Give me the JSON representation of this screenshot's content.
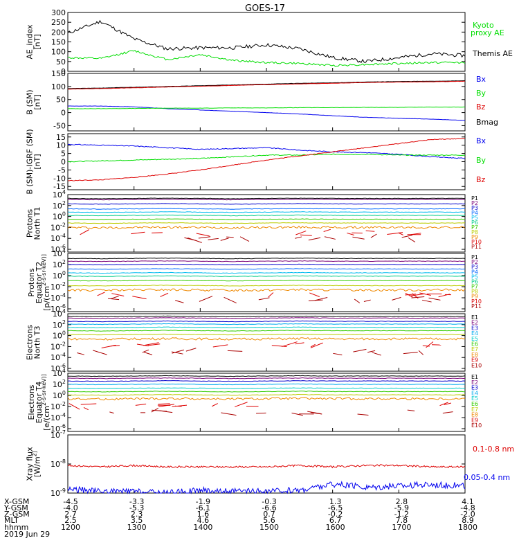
{
  "title": "GOES-17",
  "colors": {
    "black": "#000000",
    "green": "#00dd00",
    "blue": "#0000ee",
    "red": "#dd0000"
  },
  "panels": [
    {
      "ylabel_lines": [
        "AE_index",
        "[nT]"
      ],
      "scale": "linear",
      "ylim": [
        0,
        300
      ],
      "ticks": [
        "300",
        "250",
        "200",
        "150",
        "100",
        "50",
        "0"
      ],
      "tick_values": [
        300,
        250,
        200,
        150,
        100,
        50,
        0
      ],
      "legend": [
        {
          "label": "Kyoto",
          "color": "#00dd00"
        },
        {
          "label": "proxy AE",
          "color": "#00dd00"
        },
        {
          "label": "Themis AE",
          "color": "#000000"
        }
      ]
    },
    {
      "ylabel_lines": [
        "B (SM)",
        "[nT]"
      ],
      "scale": "linear",
      "ylim": [
        -70,
        150
      ],
      "ticks": [
        "150",
        "100",
        "50",
        "0",
        "-50"
      ],
      "tick_values": [
        150,
        100,
        50,
        0,
        -50
      ],
      "legend": [
        {
          "label": "Bx",
          "color": "#0000ee"
        },
        {
          "label": "By",
          "color": "#00dd00"
        },
        {
          "label": "Bz",
          "color": "#dd0000"
        },
        {
          "label": "Bmag",
          "color": "#000000"
        }
      ]
    },
    {
      "ylabel_lines": [
        "B (SM)-IGRF (SM)",
        "[nT]"
      ],
      "scale": "linear",
      "ylim": [
        -17,
        17
      ],
      "ticks": [
        "15",
        "10",
        "5",
        "0",
        "-5",
        "-10",
        "-15"
      ],
      "tick_values": [
        15,
        10,
        5,
        0,
        -5,
        -10,
        -15
      ],
      "legend": [
        {
          "label": "Bx",
          "color": "#0000ee"
        },
        {
          "label": "By",
          "color": "#00dd00"
        },
        {
          "label": "Bz",
          "color": "#dd0000"
        }
      ]
    },
    {
      "ylabel_lines": [
        "Protons",
        "North T1"
      ],
      "scale": "log",
      "ylim": [
        -6.5,
        4
      ],
      "ticks": [
        "10^4",
        "10^2",
        "10^0",
        "10^-2",
        "10^-4",
        "10^-6"
      ],
      "tick_values": [
        4,
        2,
        0,
        -2,
        -4,
        -6
      ],
      "channels": [
        "P1",
        "P2",
        "P3",
        "P4",
        "P5",
        "P6",
        "P7",
        "P8",
        "P9",
        "P10",
        "P11"
      ]
    },
    {
      "ylabel_lines": [
        "Protons",
        "Equator T2",
        "[p/(cm^2-s-sr-keV)]"
      ],
      "scale": "log",
      "ylim": [
        -6.5,
        4
      ],
      "ticks": [
        "10^4",
        "10^2",
        "10^0",
        "10^-2",
        "10^-4",
        "10^-6"
      ],
      "tick_values": [
        4,
        2,
        0,
        -2,
        -4,
        -6
      ],
      "channels": [
        "P1",
        "P2",
        "P3",
        "P4",
        "P5",
        "P6",
        "P7",
        "P8",
        "P9",
        "P10",
        "P11"
      ]
    },
    {
      "ylabel_lines": [
        "Electrons",
        "North T3"
      ],
      "scale": "log",
      "ylim": [
        -6.5,
        4
      ],
      "ticks": [
        "10^4",
        "10^2",
        "10^0",
        "10^-2",
        "10^-4",
        "10^-6"
      ],
      "tick_values": [
        4,
        2,
        0,
        -2,
        -4,
        -6
      ],
      "channels": [
        "E1",
        "E2",
        "E3",
        "E4",
        "E5",
        "E6",
        "E7",
        "E8",
        "E9",
        "E10"
      ]
    },
    {
      "ylabel_lines": [
        "Electrons",
        "Equator T4",
        "[e/(cm^2-s-sr-keV)]"
      ],
      "scale": "log",
      "ylim": [
        -6.5,
        4
      ],
      "ticks": [
        "10^4",
        "10^2",
        "10^0",
        "10^-2",
        "10^-4",
        "10^-6"
      ],
      "tick_values": [
        4,
        2,
        0,
        -2,
        -4,
        -6
      ],
      "channels": [
        "E1",
        "E2",
        "E3",
        "E4",
        "E5",
        "E6",
        "E7",
        "E8",
        "E9",
        "E10"
      ]
    },
    {
      "ylabel_lines": [
        "Xray flux",
        "[W/m^2]"
      ],
      "scale": "log",
      "ylim": [
        -9,
        -7
      ],
      "ticks": [
        "10^-7",
        "10^-8",
        "10^-9"
      ],
      "tick_values": [
        -7,
        -8,
        -9
      ],
      "legend": [
        {
          "label": "0.1-0.8 nm",
          "color": "#dd0000"
        },
        {
          "label": "0.05-0.4 nm",
          "color": "#0000ee"
        }
      ]
    }
  ],
  "channel_colors": {
    "P": [
      "#000000",
      "#7a007a",
      "#0000cc",
      "#0066ff",
      "#00bbee",
      "#00cc88",
      "#33cc00",
      "#bbcc00",
      "#ee8800",
      "#dd0000",
      "#aa0000"
    ],
    "E": [
      "#000000",
      "#7a007a",
      "#0000cc",
      "#00aaee",
      "#00cccc",
      "#33cc00",
      "#bbcc00",
      "#ee8800",
      "#dd0000",
      "#aa0000"
    ]
  },
  "axis_rows": [
    {
      "label": "X-GSM",
      "values": [
        "-4.5",
        "-3.3",
        "-1.9",
        "-0.3",
        "1.3",
        "2.8",
        "4.1"
      ]
    },
    {
      "label": "Y-GSM",
      "values": [
        "-4.0",
        "-5.3",
        "-6.1",
        "-6.6",
        "-6.5",
        "-5.9",
        "-4.8"
      ]
    },
    {
      "label": "Z-GSM",
      "values": [
        "2.7",
        "2.3",
        "1.6",
        "0.7",
        "-0.2",
        "-1.2",
        "-2.0"
      ]
    },
    {
      "label": "MLT",
      "values": [
        "2.5",
        "3.5",
        "4.6",
        "5.6",
        "6.7",
        "7.8",
        "8.9"
      ]
    },
    {
      "label": "hhmm",
      "values": [
        "1200",
        "1300",
        "1400",
        "1500",
        "1600",
        "1700",
        "1800"
      ]
    }
  ],
  "date": "2019 Jun 29",
  "chart_data": {
    "type": "line",
    "title": "GOES-17",
    "x_range_hhmm": [
      "1200",
      "1800"
    ],
    "time_hours": [
      12.0,
      12.5,
      13.0,
      13.5,
      14.0,
      14.5,
      15.0,
      15.5,
      16.0,
      16.5,
      17.0,
      17.5,
      18.0
    ],
    "ae_index": {
      "themis_ae": [
        195,
        255,
        165,
        115,
        120,
        120,
        135,
        115,
        70,
        50,
        70,
        90,
        80
      ],
      "kyoto_proxy_ae": [
        70,
        65,
        105,
        60,
        85,
        55,
        45,
        40,
        30,
        35,
        40,
        45,
        45
      ]
    },
    "b_sm": {
      "Bx": [
        25,
        25,
        22,
        15,
        10,
        5,
        0,
        -5,
        -12,
        -18,
        -22,
        -25,
        -30
      ],
      "By": [
        15,
        15,
        16,
        17,
        17,
        18,
        18,
        19,
        19,
        20,
        20,
        21,
        21
      ],
      "Bz": [
        90,
        92,
        95,
        98,
        101,
        104,
        107,
        110,
        112,
        115,
        117,
        118,
        120
      ],
      "Bmag": [
        92,
        94,
        97,
        100,
        103,
        106,
        109,
        112,
        114,
        117,
        119,
        120,
        122
      ]
    },
    "b_minus_igrf": {
      "Bx": [
        10.5,
        10,
        9.5,
        8.5,
        7.5,
        8,
        8.5,
        7,
        6,
        5.5,
        4.5,
        3,
        2
      ],
      "By": [
        0,
        0.5,
        1,
        1.5,
        2,
        3,
        4,
        4,
        4.5,
        4.5,
        4,
        4,
        4
      ],
      "Bz": [
        -11.5,
        -11,
        -9.5,
        -7.5,
        -5,
        -2,
        1,
        3.5,
        6,
        8.5,
        11,
        13.5,
        14
      ]
    },
    "protons_T1_log10": [
      3.3,
      3.1,
      2.3,
      1.4,
      0.8,
      0.2,
      -0.5,
      -1.2,
      -2,
      -3,
      -4
    ],
    "protons_T2_log10": [
      3.1,
      2.6,
      2,
      1.2,
      0.5,
      -0.1,
      -0.9,
      -1.8,
      -2.6,
      -3.5,
      -4.3
    ],
    "electrons_T3_log10": [
      3.5,
      3.2,
      2.6,
      2.1,
      1.5,
      0.9,
      0.2,
      -0.6,
      -1.9,
      -3
    ],
    "electrons_T4_log10": [
      3.5,
      3.1,
      2.6,
      2,
      1.3,
      0.7,
      0.1,
      -0.6,
      -1.8,
      -3
    ],
    "xray_log10": {
      "0.1-0.8 nm": [
        -8.05,
        -8.1,
        -8.05,
        -8.1,
        -8.1,
        -8.1,
        -8.1,
        -8.05,
        -8.1,
        -8.05,
        -8.05,
        -8.1,
        -8.1
      ],
      "0.05-0.4 nm": [
        -8.85,
        -8.95,
        -8.95,
        -9.0,
        -8.9,
        -8.95,
        -8.95,
        -8.9,
        -8.7,
        -8.8,
        -8.75,
        -8.7,
        -8.75
      ]
    }
  }
}
